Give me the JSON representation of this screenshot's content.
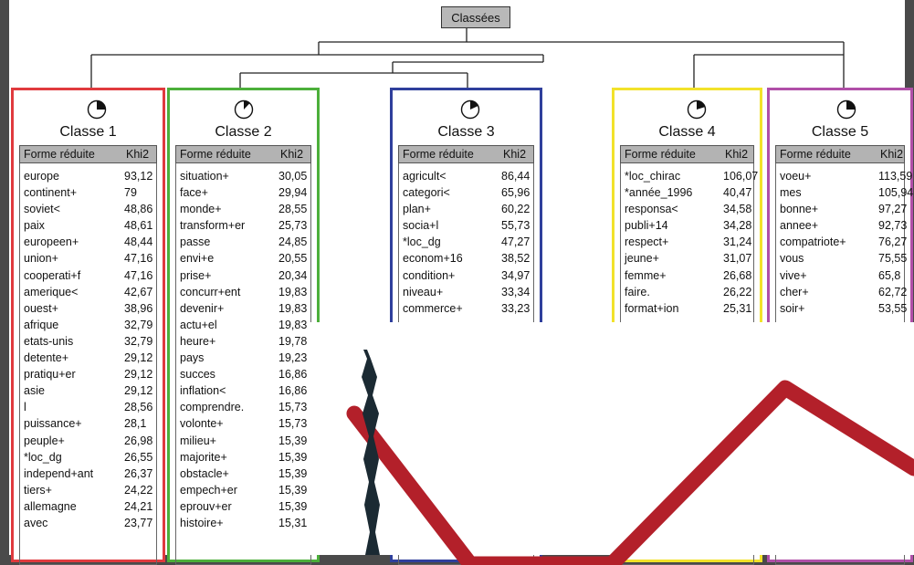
{
  "root": {
    "label": "Classées"
  },
  "panels": [
    {
      "title": "Classe 1",
      "color": "#e03a3e",
      "fill_fraction": 0.25,
      "header": {
        "col1": "Forme réduite",
        "col2": "Khi2"
      },
      "rows": [
        [
          "europe",
          "93,12"
        ],
        [
          "continent+",
          "79"
        ],
        [
          "soviet<",
          "48,86"
        ],
        [
          "paix",
          "48,61"
        ],
        [
          "europeen+",
          "48,44"
        ],
        [
          "union+",
          "47,16"
        ],
        [
          "cooperati+f",
          "47,16"
        ],
        [
          "amerique<",
          "42,67"
        ],
        [
          "ouest+",
          "38,96"
        ],
        [
          "afrique",
          "32,79"
        ],
        [
          "etats-unis",
          "32,79"
        ],
        [
          "detente+",
          "29,12"
        ],
        [
          "pratiqu+er",
          "29,12"
        ],
        [
          "asie",
          "29,12"
        ],
        [
          "l",
          "28,56"
        ],
        [
          "puissance+",
          "28,1"
        ],
        [
          "peuple+",
          "26,98"
        ],
        [
          "*loc_dg",
          "26,55"
        ],
        [
          "independ+ant",
          "26,37"
        ],
        [
          "tiers+",
          "24,22"
        ],
        [
          "allemagne",
          "24,21"
        ],
        [
          "avec",
          "23,77"
        ]
      ]
    },
    {
      "title": "Classe 2",
      "color": "#4caf3a",
      "fill_fraction": 0.12,
      "header": {
        "col1": "Forme réduite",
        "col2": "Khi2"
      },
      "rows": [
        [
          "situation+",
          "30,05"
        ],
        [
          "face+",
          "29,94"
        ],
        [
          "monde+",
          "28,55"
        ],
        [
          "transform+er",
          "25,73"
        ],
        [
          "passe",
          "24,85"
        ],
        [
          "envi+e",
          "20,55"
        ],
        [
          "prise+",
          "20,34"
        ],
        [
          "concurr+ent",
          "19,83"
        ],
        [
          "devenir+",
          "19,83"
        ],
        [
          "actu+el",
          "19,83"
        ],
        [
          "heure+",
          "19,78"
        ],
        [
          "pays",
          "19,23"
        ],
        [
          "succes",
          "16,86"
        ],
        [
          "inflation<",
          "16,86"
        ],
        [
          "comprendre.",
          "15,73"
        ],
        [
          "volonte+",
          "15,73"
        ],
        [
          "milieu+",
          "15,39"
        ],
        [
          "majorite+",
          "15,39"
        ],
        [
          "obstacle+",
          "15,39"
        ],
        [
          "empech+er",
          "15,39"
        ],
        [
          "eprouv+er",
          "15,39"
        ],
        [
          "histoire+",
          "15,31"
        ]
      ]
    },
    {
      "title": "Classe 3",
      "color": "#2f3f9c",
      "fill_fraction": 0.18,
      "header": {
        "col1": "Forme réduite",
        "col2": "Khi2"
      },
      "rows": [
        [
          "agricult<",
          "86,44"
        ],
        [
          "categori<",
          "65,96"
        ],
        [
          "plan+",
          "60,22"
        ],
        [
          "socia+l",
          "55,73"
        ],
        [
          "*loc_dg",
          "47,27"
        ],
        [
          "econom+16",
          "38,52"
        ],
        [
          "condition+",
          "34,97"
        ],
        [
          "niveau+",
          "33,34"
        ],
        [
          "commerce+",
          "33,23"
        ]
      ]
    },
    {
      "title": "Classe 4",
      "color": "#f2e22a",
      "fill_fraction": 0.2,
      "header": {
        "col1": "Forme réduite",
        "col2": "Khi2"
      },
      "rows": [
        [
          "*loc_chirac",
          "106,07"
        ],
        [
          "*année_1996",
          "40,47"
        ],
        [
          "responsa<",
          "34,58"
        ],
        [
          "publi+14",
          "34,28"
        ],
        [
          "respect+",
          "31,24"
        ],
        [
          "jeune+",
          "31,07"
        ],
        [
          "femme+",
          "26,68"
        ],
        [
          "faire.",
          "26,22"
        ],
        [
          "format+ion",
          "25,31"
        ]
      ]
    },
    {
      "title": "Classe 5",
      "color": "#b04fa8",
      "fill_fraction": 0.25,
      "header": {
        "col1": "Forme réduite",
        "col2": "Khi2"
      },
      "rows": [
        [
          "voeu+",
          "113,59"
        ],
        [
          "mes",
          "105,94"
        ],
        [
          "bonne+",
          "97,27"
        ],
        [
          "annee+",
          "92,73"
        ],
        [
          "compatriote+",
          "76,27"
        ],
        [
          "vous",
          "75,55"
        ],
        [
          "vive+",
          "65,8"
        ],
        [
          "cher+",
          "62,72"
        ],
        [
          "soir+",
          "53,55"
        ]
      ]
    }
  ],
  "overlay": {
    "stroke_red": "#b3202a",
    "stroke_dark": "#1b2a33"
  }
}
